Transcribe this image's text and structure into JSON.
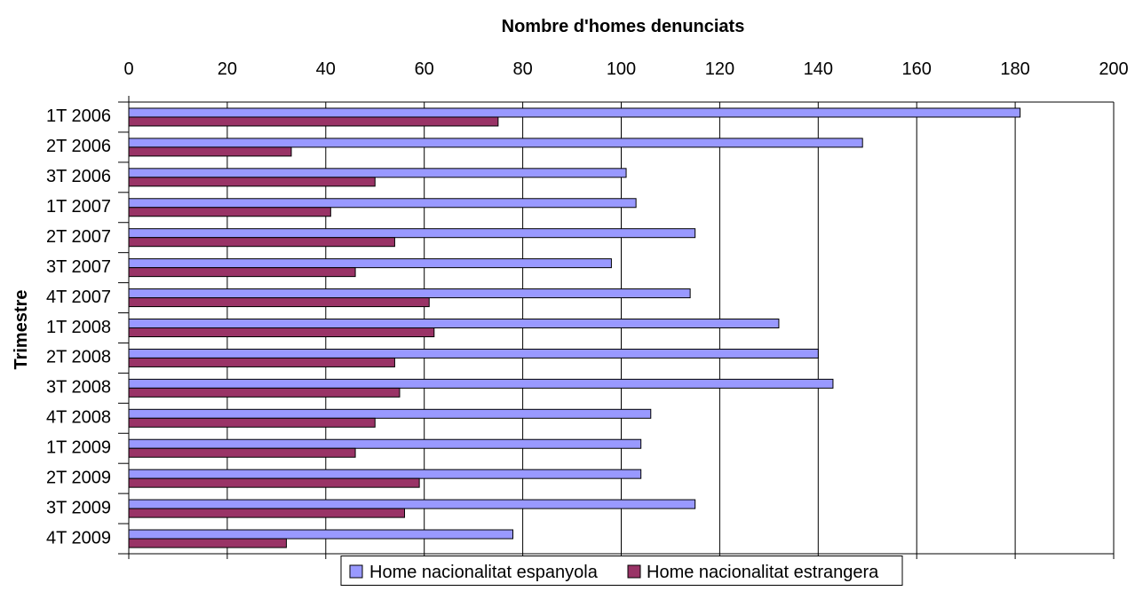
{
  "chart_data": {
    "type": "bar",
    "orientation": "horizontal",
    "xlabel": "Nombre d'homes denunciats",
    "ylabel": "Trimestre",
    "xlim": [
      0,
      200
    ],
    "xticks": [
      0,
      20,
      40,
      60,
      80,
      100,
      120,
      140,
      160,
      180,
      200
    ],
    "grid": true,
    "legend_position": "bottom",
    "categories": [
      "1T 2006",
      "2T 2006",
      "3T 2006",
      "1T 2007",
      "2T 2007",
      "3T 2007",
      "4T 2007",
      "1T 2008",
      "2T 2008",
      "3T 2008",
      "4T 2008",
      "1T 2009",
      "2T 2009",
      "3T 2009",
      "4T 2009"
    ],
    "series": [
      {
        "name": "Home nacionalitat espanyola",
        "color": "#9999FF",
        "values": [
          181,
          149,
          101,
          103,
          115,
          98,
          114,
          132,
          140,
          143,
          106,
          104,
          104,
          115,
          78
        ]
      },
      {
        "name": "Home nacionalitat estrangera",
        "color": "#993366",
        "values": [
          75,
          33,
          50,
          41,
          54,
          46,
          61,
          62,
          54,
          55,
          50,
          46,
          59,
          56,
          32
        ]
      }
    ]
  }
}
